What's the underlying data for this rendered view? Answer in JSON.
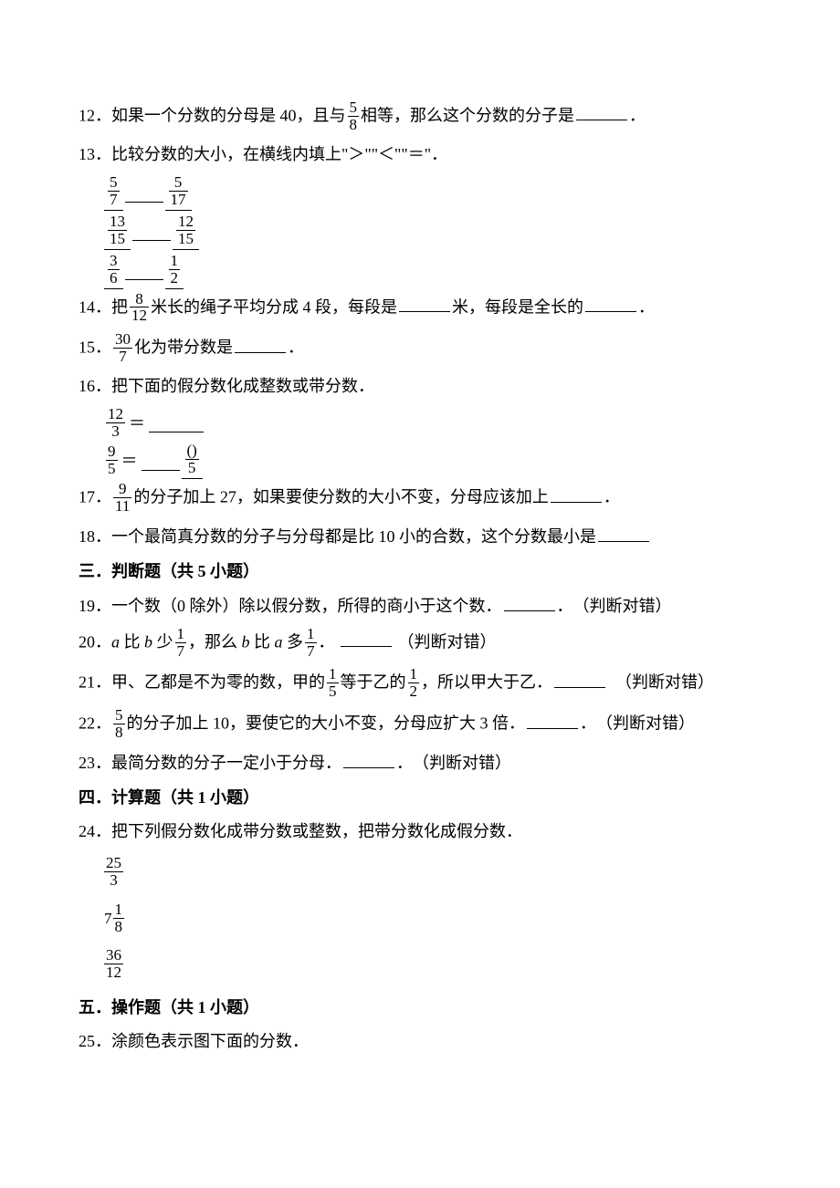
{
  "q12": {
    "num": "12",
    "pre": "．如果一个分数的分母是 40，且与",
    "frac": {
      "n": "5",
      "d": "8"
    },
    "post": "相等，那么这个分数的分子是",
    "tail": "．"
  },
  "q13": {
    "num": "13",
    "text": "．比较分数的大小，在横线内填上\"＞\"\"＜\"\"＝\"．",
    "rows": [
      {
        "a": {
          "n": "5",
          "d": "7"
        },
        "b": {
          "n": "5",
          "d": "17"
        }
      },
      {
        "a": {
          "n": "13",
          "d": "15"
        },
        "b": {
          "n": "12",
          "d": "15"
        }
      },
      {
        "a": {
          "n": "3",
          "d": "6"
        },
        "b": {
          "n": "1",
          "d": "2"
        }
      }
    ]
  },
  "q14": {
    "num": "14",
    "pre": "．把",
    "frac": {
      "n": "8",
      "d": "12"
    },
    "mid1": "米长的绳子平均分成 4 段，每段是",
    "unit": "米，每段是全长的",
    "tail": "．"
  },
  "q15": {
    "num": "15",
    "pre": "．",
    "frac": {
      "n": "30",
      "d": "7"
    },
    "mid": "化为带分数是",
    "tail": "．"
  },
  "q16": {
    "num": "16",
    "title": "．把下面的假分数化成整数或带分数．",
    "r1": {
      "frac": {
        "n": "12",
        "d": "3"
      }
    },
    "r2": {
      "frac": {
        "n": "9",
        "d": "5"
      },
      "ans": {
        "n": "()",
        "d": "5"
      }
    }
  },
  "q17": {
    "num": "17",
    "pre": "．",
    "frac": {
      "n": "9",
      "d": "11"
    },
    "mid": "的分子加上 27，如果要使分数的大小不变，分母应该加上",
    "tail": "．"
  },
  "q18": {
    "num": "18",
    "text": "．一个最简真分数的分子与分母都是比 10 小的合数，这个分数最小是"
  },
  "sec3": "三．判断题（共 5 小题）",
  "q19": {
    "num": "19",
    "text": "．一个数（0 除外）除以假分数，所得的商小于这个数．",
    "tail": "．　（判断对错）"
  },
  "q20": {
    "num": "20",
    "pre": "．",
    "a": "a",
    "t1": " 比 ",
    "b": "b",
    "t2": " 少",
    "f1": {
      "n": "1",
      "d": "7"
    },
    "t3": "，那么 ",
    "t4": " 比 ",
    "t5": " 多",
    "f2": {
      "n": "1",
      "d": "7"
    },
    "t6": "．",
    "tail": "（判断对错）"
  },
  "q21": {
    "num": "21",
    "pre": "．甲、乙都是不为零的数，甲的",
    "f1": {
      "n": "1",
      "d": "5"
    },
    "mid": "等于乙的",
    "f2": {
      "n": "1",
      "d": "2"
    },
    "post": "，所以甲大于乙．",
    "tail": "（判断对错）"
  },
  "q22": {
    "num": "22",
    "pre": "．",
    "f1": {
      "n": "5",
      "d": "8"
    },
    "mid": "的分子加上 10，要使它的大小不变，分母应扩大 3 倍．",
    "tail": "．　（判断对错）"
  },
  "q23": {
    "num": "23",
    "text": "．最简分数的分子一定小于分母．",
    "tail": "．　（判断对错）"
  },
  "sec4": "四．计算题（共 1 小题）",
  "q24": {
    "num": "24",
    "title": "．把下列假分数化成带分数或整数，把带分数化成假分数．",
    "items": [
      {
        "type": "frac",
        "n": "25",
        "d": "3"
      },
      {
        "type": "mixed",
        "w": "7",
        "n": "1",
        "d": "8"
      },
      {
        "type": "frac",
        "n": "36",
        "d": "12"
      }
    ]
  },
  "sec5": "五．操作题（共 1 小题）",
  "q25": {
    "num": "25",
    "text": "．涂颜色表示图下面的分数．"
  }
}
